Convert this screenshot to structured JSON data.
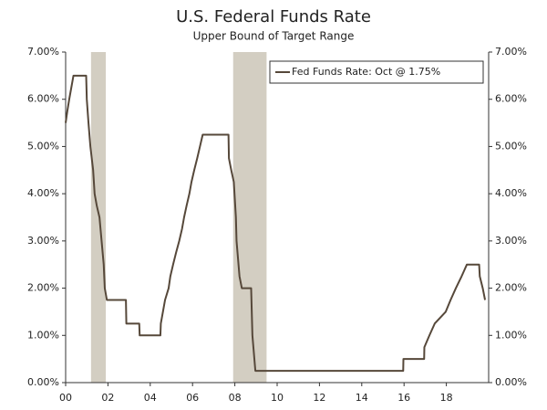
{
  "chart_data": {
    "type": "line",
    "title": "U.S. Federal Funds Rate",
    "subtitle": "Upper Bound of Target Range",
    "x": [
      2000.0,
      2000.08,
      2000.17,
      2000.37,
      2000.97,
      2001.0,
      2001.08,
      2001.17,
      2001.3,
      2001.37,
      2001.47,
      2001.6,
      2001.7,
      2001.8,
      2001.85,
      2001.95,
      2002.85,
      2002.87,
      2003.48,
      2003.5,
      2004.48,
      2004.5,
      2004.6,
      2004.7,
      2004.87,
      2004.95,
      2005.08,
      2005.22,
      2005.37,
      2005.5,
      2005.6,
      2005.72,
      2005.85,
      2005.95,
      2006.08,
      2006.22,
      2006.35,
      2006.48,
      2007.7,
      2007.72,
      2007.83,
      2007.95,
      2008.05,
      2008.08,
      2008.22,
      2008.33,
      2008.77,
      2008.8,
      2008.83,
      2008.97,
      2015.96,
      2015.97,
      2016.95,
      2016.96,
      2017.2,
      2017.45,
      2017.97,
      2018.2,
      2018.45,
      2018.72,
      2018.97,
      2019.55,
      2019.58,
      2019.72,
      2019.83
    ],
    "series": [
      {
        "name": "Fed Funds Rate: Oct @ 1.75%",
        "color": "#56483a",
        "values": [
          5.5,
          5.75,
          6.0,
          6.5,
          6.5,
          6.0,
          5.5,
          5.0,
          4.5,
          4.0,
          3.75,
          3.5,
          3.0,
          2.5,
          2.0,
          1.75,
          1.75,
          1.25,
          1.25,
          1.0,
          1.0,
          1.25,
          1.5,
          1.75,
          2.0,
          2.25,
          2.5,
          2.75,
          3.0,
          3.25,
          3.5,
          3.75,
          4.0,
          4.25,
          4.5,
          4.75,
          5.0,
          5.25,
          5.25,
          4.75,
          4.5,
          4.25,
          3.5,
          3.0,
          2.25,
          2.0,
          2.0,
          1.5,
          1.0,
          0.25,
          0.25,
          0.5,
          0.5,
          0.75,
          1.0,
          1.25,
          1.5,
          1.75,
          2.0,
          2.25,
          2.5,
          2.5,
          2.25,
          2.0,
          1.75
        ]
      }
    ],
    "recessions": [
      [
        2001.2,
        2001.9
      ],
      [
        2007.92,
        2009.5
      ]
    ],
    "recession_color": "#d3cec2",
    "xlim": [
      2000,
      2020
    ],
    "xticks": [
      {
        "value": 2000,
        "label": "00"
      },
      {
        "value": 2002,
        "label": "02"
      },
      {
        "value": 2004,
        "label": "04"
      },
      {
        "value": 2006,
        "label": "06"
      },
      {
        "value": 2008,
        "label": "08"
      },
      {
        "value": 2010,
        "label": "10"
      },
      {
        "value": 2012,
        "label": "12"
      },
      {
        "value": 2014,
        "label": "14"
      },
      {
        "value": 2016,
        "label": "16"
      },
      {
        "value": 2018,
        "label": "18"
      }
    ],
    "ylim": [
      0,
      7
    ],
    "yticks": [
      {
        "value": 0,
        "label": "0.00%"
      },
      {
        "value": 1,
        "label": "1.00%"
      },
      {
        "value": 2,
        "label": "2.00%"
      },
      {
        "value": 3,
        "label": "3.00%"
      },
      {
        "value": 4,
        "label": "4.00%"
      },
      {
        "value": 5,
        "label": "5.00%"
      },
      {
        "value": 6,
        "label": "6.00%"
      },
      {
        "value": 7,
        "label": "7.00%"
      }
    ],
    "legend": "top-right",
    "grid": false
  }
}
